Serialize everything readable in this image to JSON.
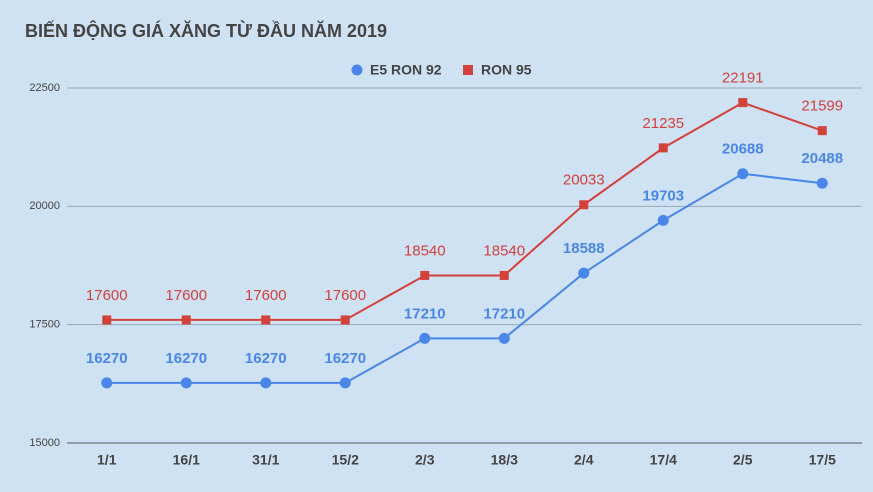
{
  "chart_data": {
    "type": "line",
    "title": "BIẾN ĐỘNG GIÁ XĂNG TỪ ĐẦU NĂM 2019",
    "categories": [
      "1/1",
      "16/1",
      "31/1",
      "15/2",
      "2/3",
      "18/3",
      "2/4",
      "17/4",
      "2/5",
      "17/5"
    ],
    "series": [
      {
        "name": "E5 RON 92",
        "color": "#4a86e8",
        "marker": "circle",
        "values": [
          16270,
          16270,
          16270,
          16270,
          17210,
          17210,
          18588,
          19703,
          20688,
          20488
        ]
      },
      {
        "name": "RON 95",
        "color": "#d2413a",
        "marker": "square",
        "values": [
          17600,
          17600,
          17600,
          17600,
          18540,
          18540,
          20033,
          21235,
          22191,
          21599
        ]
      }
    ],
    "ylim": [
      15000,
      22500
    ],
    "yticks": [
      15000,
      17500,
      20000,
      22500
    ],
    "grid": true,
    "legend": "top"
  }
}
